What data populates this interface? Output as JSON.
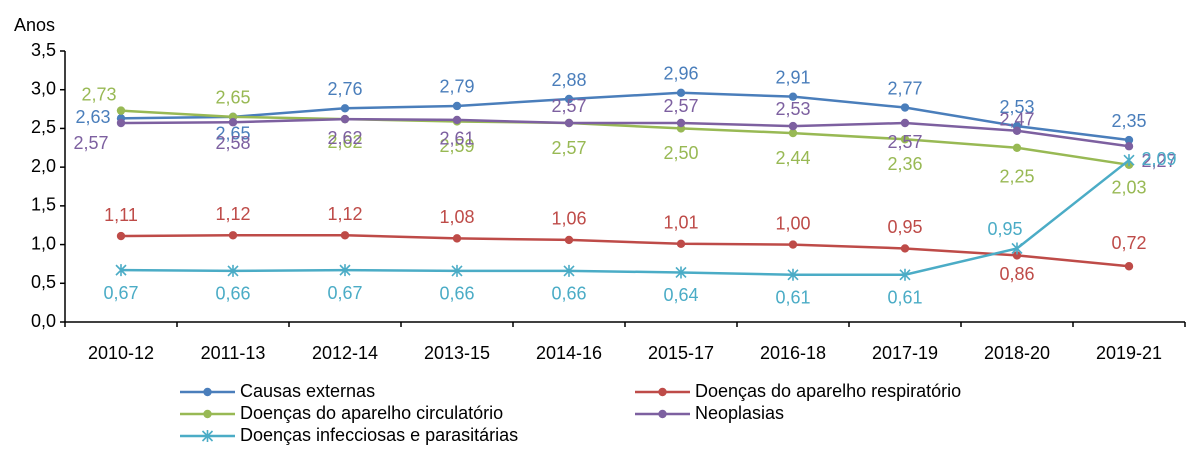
{
  "chart_data": {
    "type": "line",
    "y_label": "Anos",
    "categories": [
      "2010-12",
      "2011-13",
      "2012-14",
      "2013-15",
      "2014-16",
      "2015-17",
      "2016-18",
      "2017-19",
      "2018-20",
      "2019-21"
    ],
    "ylim": [
      0,
      3.5
    ],
    "yticks": [
      {
        "value": 0,
        "label": "0,0"
      },
      {
        "value": 0.5,
        "label": "0,5"
      },
      {
        "value": 1,
        "label": "1,0"
      },
      {
        "value": 1.5,
        "label": "1,5"
      },
      {
        "value": 2,
        "label": "2,0"
      },
      {
        "value": 2.5,
        "label": "2,5"
      },
      {
        "value": 3,
        "label": "3,0"
      },
      {
        "value": 3.5,
        "label": "3,5"
      }
    ],
    "grid": false,
    "series": [
      {
        "name": "Causas externas",
        "color": "#4a7ebb",
        "marker": "circle",
        "values": [
          2.63,
          2.65,
          2.76,
          2.79,
          2.88,
          2.96,
          2.91,
          2.77,
          2.53,
          2.35
        ],
        "value_labels": [
          "2,63",
          "2,65",
          "2,76",
          "2,79",
          "2,88",
          "2,96",
          "2,91",
          "2,77",
          "2,53",
          "2,35"
        ]
      },
      {
        "name": "Doenças do aparelho respiratório",
        "color": "#be4b48",
        "marker": "circle",
        "values": [
          1.11,
          1.12,
          1.12,
          1.08,
          1.06,
          1.01,
          1.0,
          0.95,
          0.86,
          0.72
        ],
        "value_labels": [
          "1,11",
          "1,12",
          "1,12",
          "1,08",
          "1,06",
          "1,01",
          "1,00",
          "0,95",
          "0,86",
          "0,72"
        ]
      },
      {
        "name": "Doenças do aparelho circulatório",
        "color": "#98b954",
        "marker": "circle",
        "values": [
          2.73,
          2.65,
          2.62,
          2.59,
          2.57,
          2.5,
          2.44,
          2.36,
          2.25,
          2.03
        ],
        "value_labels": [
          "2,73",
          "2,65",
          "2,62",
          "2,59",
          "2,57",
          "2,50",
          "2,44",
          "2,36",
          "2,25",
          "2,03"
        ]
      },
      {
        "name": "Neoplasias",
        "color": "#7d60a0",
        "marker": "circle",
        "values": [
          2.57,
          2.58,
          2.62,
          2.61,
          2.57,
          2.57,
          2.53,
          2.57,
          2.47,
          2.27
        ],
        "value_labels": [
          "2,57",
          "2,58",
          "2,62",
          "2,61",
          "2,57",
          "2,57",
          "2,53",
          "2,57",
          "2,47",
          "2,27"
        ]
      },
      {
        "name": "Doenças infecciosas e parasitárias",
        "color": "#4bacc6",
        "marker": "star",
        "values": [
          0.67,
          0.66,
          0.67,
          0.66,
          0.66,
          0.64,
          0.61,
          0.61,
          0.95,
          2.09
        ],
        "value_labels": [
          "0,67",
          "0,66",
          "0,67",
          "0,66",
          "0,66",
          "0,64",
          "0,61",
          "0,61",
          "0,95",
          "2,09"
        ]
      }
    ]
  }
}
